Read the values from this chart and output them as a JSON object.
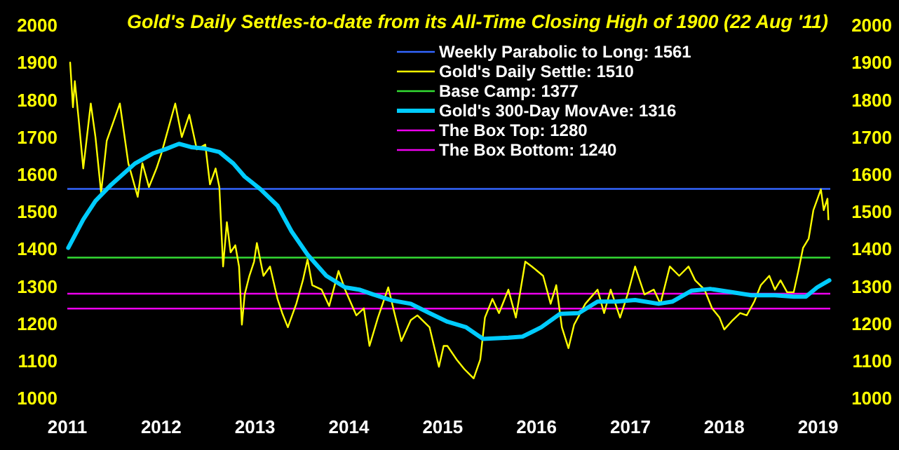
{
  "chart_data": {
    "type": "line",
    "title": "Gold's Daily Settles-to-date from its All-Time Closing High of 1900 (22 Aug '11)",
    "xlim": [
      2011,
      2019.13
    ],
    "xticks": [
      2011,
      2012,
      2013,
      2014,
      2015,
      2016,
      2017,
      2018,
      2019
    ],
    "ylim": [
      1000,
      2000
    ],
    "yticks": [
      1000,
      1100,
      1200,
      1300,
      1400,
      1500,
      1600,
      1700,
      1800,
      1900,
      2000
    ],
    "y2lim": [
      1000,
      2000
    ],
    "y2ticks": [
      1000,
      1100,
      1200,
      1300,
      1400,
      1500,
      1600,
      1700,
      1800,
      1900,
      2000
    ],
    "grid": false,
    "legend": "top",
    "marker": "none",
    "line_style": "solid",
    "series": [
      {
        "name": "Gold's Daily Settle:  1510",
        "color": "#ffff00",
        "x": [
          2011.03,
          2011.06,
          2011.08,
          2011.12,
          2011.17,
          2011.25,
          2011.3,
          2011.36,
          2011.42,
          2011.56,
          2011.65,
          2011.75,
          2011.8,
          2011.87,
          2011.95,
          2012.0,
          2012.04,
          2012.15,
          2012.22,
          2012.3,
          2012.38,
          2012.47,
          2012.52,
          2012.58,
          2012.62,
          2012.66,
          2012.7,
          2012.74,
          2012.79,
          2012.83,
          2012.86,
          2012.89,
          2012.94,
          2012.99,
          2013.02,
          2013.09,
          2013.16,
          2013.24,
          2013.29,
          2013.35,
          2013.44,
          2013.51,
          2013.56,
          2013.61,
          2013.71,
          2013.79,
          2013.89,
          2013.96,
          2014.08,
          2014.16,
          2014.22,
          2014.31,
          2014.42,
          2014.48,
          2014.56,
          2014.66,
          2014.73,
          2014.86,
          2014.96,
          2015.01,
          2015.05,
          2015.15,
          2015.23,
          2015.33,
          2015.4,
          2015.45,
          2015.53,
          2015.6,
          2015.7,
          2015.78,
          2015.88,
          2015.95,
          2016.07,
          2016.15,
          2016.21,
          2016.27,
          2016.34,
          2016.4,
          2016.52,
          2016.65,
          2016.72,
          2016.79,
          2016.89,
          2016.97,
          2017.05,
          2017.15,
          2017.25,
          2017.32,
          2017.42,
          2017.52,
          2017.62,
          2017.69,
          2017.79,
          2017.87,
          2017.95,
          2018.0,
          2018.09,
          2018.17,
          2018.24,
          2018.32,
          2018.39,
          2018.48,
          2018.54,
          2018.6,
          2018.67,
          2018.74,
          2018.79,
          2018.84,
          2018.9,
          2018.95,
          2019.03,
          2019.06,
          2019.1,
          2019.11
        ],
        "values": [
          1900,
          1780,
          1850,
          1750,
          1616,
          1790,
          1700,
          1551,
          1690,
          1790,
          1630,
          1540,
          1630,
          1566,
          1616,
          1654,
          1690,
          1790,
          1700,
          1760,
          1667,
          1680,
          1573,
          1616,
          1566,
          1353,
          1472,
          1391,
          1410,
          1353,
          1197,
          1278,
          1328,
          1366,
          1416,
          1328,
          1353,
          1266,
          1228,
          1190,
          1253,
          1316,
          1372,
          1303,
          1291,
          1247,
          1341,
          1291,
          1222,
          1241,
          1140,
          1216,
          1297,
          1234,
          1153,
          1209,
          1222,
          1190,
          1084,
          1140,
          1140,
          1103,
          1078,
          1053,
          1103,
          1216,
          1266,
          1228,
          1291,
          1216,
          1366,
          1353,
          1328,
          1253,
          1303,
          1190,
          1134,
          1197,
          1253,
          1291,
          1228,
          1291,
          1216,
          1278,
          1353,
          1278,
          1291,
          1253,
          1353,
          1328,
          1353,
          1316,
          1291,
          1241,
          1216,
          1184,
          1209,
          1228,
          1222,
          1259,
          1303,
          1328,
          1291,
          1316,
          1284,
          1284,
          1341,
          1403,
          1428,
          1504,
          1560,
          1504,
          1535,
          1479
        ]
      },
      {
        "name": "Gold's 300-Day MovAve:  1316",
        "color": "#00ccff",
        "x": [
          2011.01,
          2011.17,
          2011.3,
          2011.47,
          2011.72,
          2011.92,
          2012.04,
          2012.19,
          2012.32,
          2012.47,
          2012.62,
          2012.77,
          2012.89,
          2013.06,
          2013.24,
          2013.39,
          2013.56,
          2013.76,
          2013.96,
          2014.11,
          2014.26,
          2014.46,
          2014.66,
          2014.86,
          2015.05,
          2015.25,
          2015.43,
          2015.7,
          2015.85,
          2016.05,
          2016.25,
          2016.45,
          2016.65,
          2016.85,
          2017.05,
          2017.3,
          2017.45,
          2017.65,
          2017.85,
          2018.09,
          2018.29,
          2018.54,
          2018.74,
          2018.87,
          2018.99,
          2019.12
        ],
        "values": [
          1403,
          1479,
          1529,
          1573,
          1629,
          1657,
          1667,
          1682,
          1673,
          1669,
          1660,
          1629,
          1594,
          1560,
          1516,
          1447,
          1385,
          1328,
          1297,
          1291,
          1278,
          1262,
          1253,
          1228,
          1205,
          1190,
          1159,
          1162,
          1165,
          1190,
          1226,
          1228,
          1259,
          1259,
          1263,
          1253,
          1259,
          1288,
          1293,
          1284,
          1276,
          1276,
          1272,
          1272,
          1297,
          1316
        ]
      }
    ],
    "ref_lines": [
      {
        "axis": "y",
        "value": 1561,
        "label": "Weekly Parabolic to Long:  1561",
        "color": "#3366ff"
      },
      {
        "axis": "y",
        "value": 1377,
        "label": "Base Camp:  1377",
        "color": "#33dd33"
      },
      {
        "axis": "y",
        "value": 1280,
        "label": "The Box Top:  1280",
        "color": "#ee00ee"
      },
      {
        "axis": "y",
        "value": 1240,
        "label": "The Box Bottom:  1240",
        "color": "#ee00ee"
      }
    ]
  }
}
